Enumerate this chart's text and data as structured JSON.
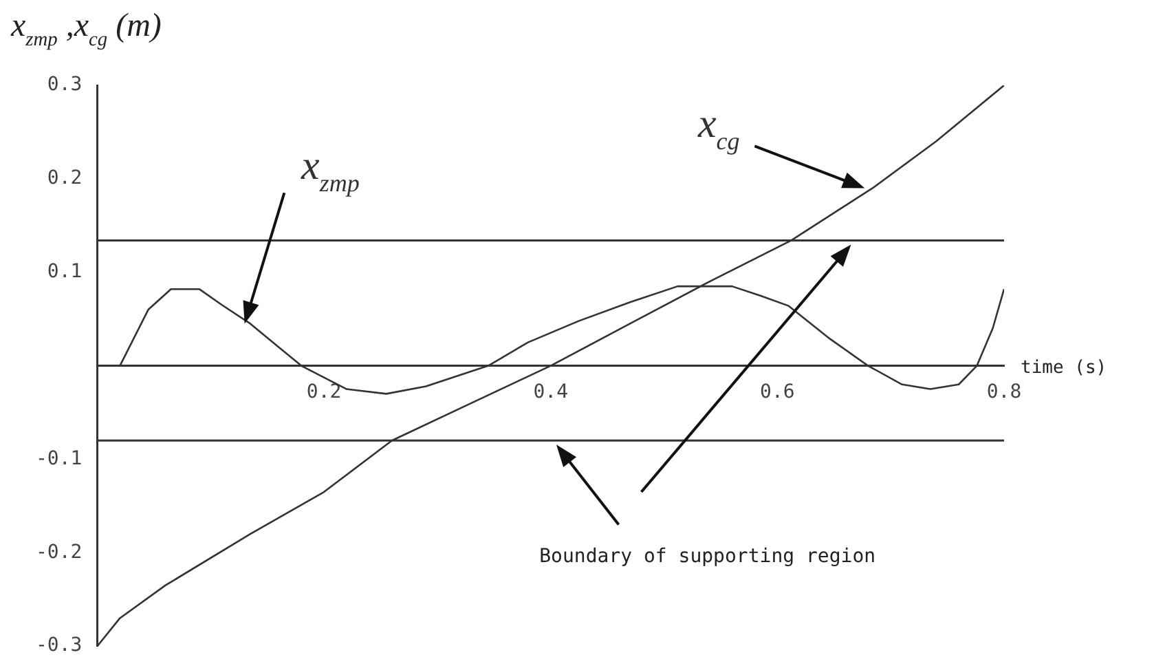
{
  "chart_data": {
    "type": "line",
    "ylabel": "x$_{zmp}$ ,x$_{cg}$ (m)",
    "xlabel": "time (s)",
    "xlim": [
      0,
      0.8
    ],
    "xticks": [
      0.2,
      0.4,
      0.6,
      0.8
    ],
    "ylim": [
      -0.3,
      0.3
    ],
    "yticks": [
      -0.3,
      -0.2,
      -0.1,
      0.1,
      0.2,
      0.3
    ],
    "grid": false,
    "legend": false,
    "marker": "none",
    "line_style": "solid",
    "series": [
      {
        "name": "x$_{zmp}$",
        "color": "#333333",
        "x": [
          0,
          0.02,
          0.045,
          0.065,
          0.09,
          0.11,
          0.135,
          0.16,
          0.18,
          0.22,
          0.255,
          0.29,
          0.345,
          0.38,
          0.425,
          0.47,
          0.512,
          0.56,
          0.585,
          0.61,
          0.645,
          0.68,
          0.71,
          0.735,
          0.76,
          0.776,
          0.79,
          0.8
        ],
        "values": [
          0,
          0,
          0.06,
          0.082,
          0.082,
          0.065,
          0.045,
          0.02,
          0,
          -0.025,
          -0.03,
          -0.022,
          0,
          0.025,
          0.048,
          0.068,
          0.085,
          0.085,
          0.075,
          0.064,
          0.03,
          0,
          -0.02,
          -0.025,
          -0.02,
          0,
          0.04,
          0.082
        ]
      },
      {
        "name": "x$_{cg}$",
        "color": "#333333",
        "x": [
          0,
          0.02,
          0.06,
          0.135,
          0.2,
          0.26,
          0.33,
          0.4,
          0.47,
          0.54,
          0.612,
          0.684,
          0.74,
          0.8
        ],
        "values": [
          -0.3,
          -0.27,
          -0.235,
          -0.18,
          -0.135,
          -0.08,
          -0.04,
          0,
          0.045,
          0.09,
          0.134,
          0.19,
          0.24,
          0.3
        ]
      }
    ],
    "ref_lines": [
      {
        "axis": "y",
        "value": 0.134,
        "color": "#333333"
      },
      {
        "axis": "y",
        "value": -0.08,
        "color": "#333333"
      }
    ],
    "annotations": [
      "Boundary of supporting region"
    ]
  }
}
